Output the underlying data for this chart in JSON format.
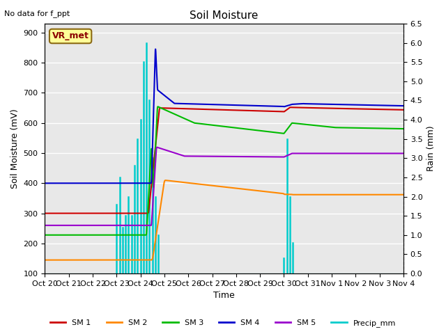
{
  "title": "Soil Moisture",
  "xlabel": "Time",
  "ylabel_left": "Soil Moisture (mV)",
  "ylabel_right": "Rain (mm)",
  "annotation": "No data for f_ppt",
  "box_label": "VR_met",
  "ylim_left": [
    100,
    930
  ],
  "ylim_right": [
    0.0,
    6.5
  ],
  "yticks_left": [
    100,
    200,
    300,
    400,
    500,
    600,
    700,
    800,
    900
  ],
  "yticks_right": [
    0.0,
    0.5,
    1.0,
    1.5,
    2.0,
    2.5,
    3.0,
    3.5,
    4.0,
    4.5,
    5.0,
    5.5,
    6.0,
    6.5
  ],
  "background_color": "#e8e8e8",
  "colors": {
    "SM1": "#cc0000",
    "SM2": "#ff8800",
    "SM3": "#00bb00",
    "SM4": "#0000cc",
    "SM5": "#9900cc",
    "Precip": "#00cccc"
  },
  "tick_labels": [
    "Oct 20",
    "Oct 21",
    "Oct 22",
    "Oct 23",
    "Oct 24",
    "Oct 25",
    "Oct 26",
    "Oct 27",
    "Oct 28",
    "Oct 29",
    "Oct 30",
    "Oct 31",
    "Nov 1",
    "Nov 2",
    "Nov 3",
    "Nov 4"
  ]
}
